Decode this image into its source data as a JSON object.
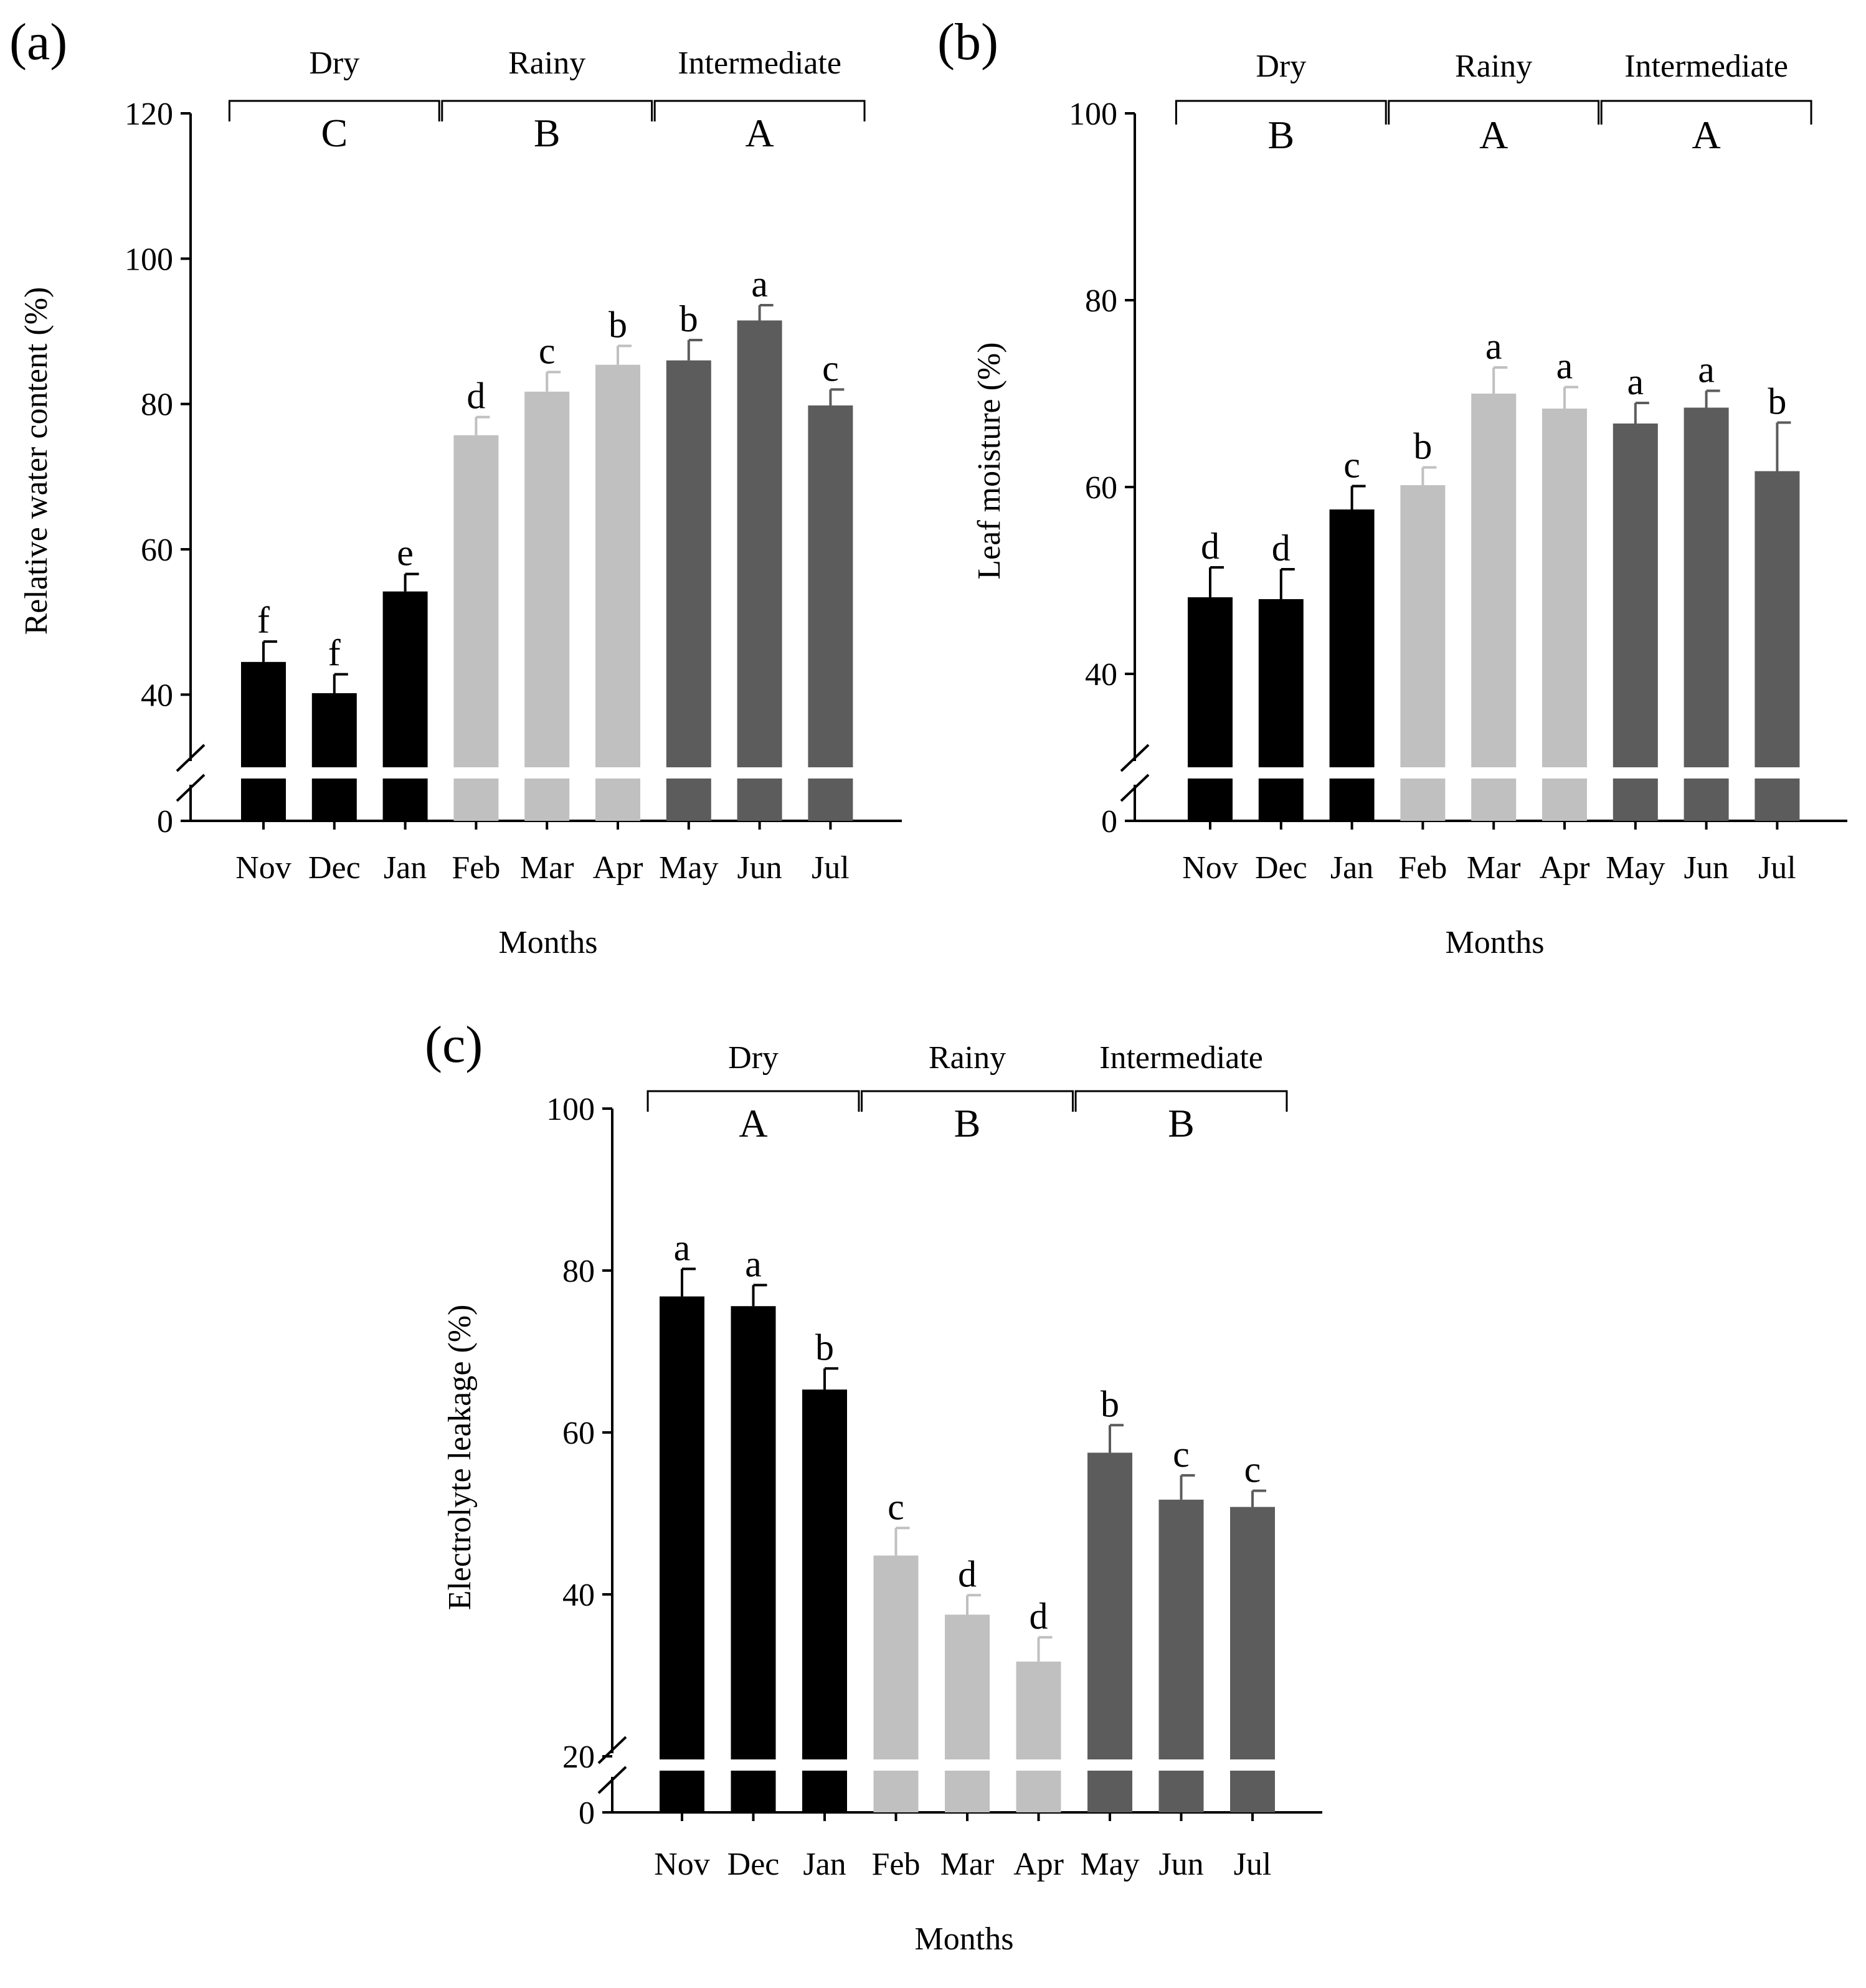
{
  "figure": {
    "x_title": "Months",
    "months": [
      "Nov",
      "Dec",
      "Jan",
      "Feb",
      "Mar",
      "Apr",
      "May",
      "Jun",
      "Jul"
    ],
    "season_colors": {
      "Dry": "#000000",
      "Rainy": "#c0c0c0",
      "Intermediate": "#5c5c5c"
    }
  },
  "chart_data": [
    {
      "panel": "(a)",
      "type": "bar",
      "ylabel": "Relative water content (%)",
      "xlabel": "Months",
      "categories": [
        "Nov",
        "Dec",
        "Jan",
        "Feb",
        "Mar",
        "Apr",
        "May",
        "Jun",
        "Jul"
      ],
      "values": [
        44.5,
        40.2,
        54.2,
        75.7,
        81.7,
        85.4,
        86.0,
        91.5,
        79.8
      ],
      "errors": [
        2.8,
        2.6,
        2.4,
        2.5,
        2.7,
        2.6,
        2.8,
        2.1,
        2.2
      ],
      "letters": [
        "f",
        "f",
        "e",
        "d",
        "c",
        "b",
        "b",
        "a",
        "c"
      ],
      "ylim": [
        30,
        120
      ],
      "y_ticks": [
        "0",
        "40",
        "60",
        "80",
        "100",
        "120"
      ],
      "axis_break": true,
      "seasons": [
        {
          "name": "Dry",
          "letter": "C",
          "months": [
            "Nov",
            "Dec",
            "Jan"
          ]
        },
        {
          "name": "Rainy",
          "letter": "B",
          "months": [
            "Feb",
            "Mar",
            "Apr"
          ]
        },
        {
          "name": "Intermediate",
          "letter": "A",
          "months": [
            "May",
            "Jun",
            "Jul"
          ]
        }
      ]
    },
    {
      "panel": "(b)",
      "type": "bar",
      "ylabel": "Leaf moisture (%)",
      "xlabel": "Months",
      "categories": [
        "Nov",
        "Dec",
        "Jan",
        "Feb",
        "Mar",
        "Apr",
        "May",
        "Jun",
        "Jul"
      ],
      "values": [
        48.2,
        48.0,
        57.6,
        60.2,
        70.0,
        68.4,
        66.8,
        68.5,
        61.7
      ],
      "errors": [
        3.2,
        3.2,
        2.5,
        1.9,
        2.8,
        2.3,
        2.2,
        1.8,
        5.2
      ],
      "letters": [
        "d",
        "d",
        "c",
        "b",
        "a",
        "a",
        "a",
        "a",
        "b"
      ],
      "ylim": [
        30,
        100
      ],
      "y_ticks": [
        "0",
        "40",
        "60",
        "80",
        "100"
      ],
      "axis_break": true,
      "seasons": [
        {
          "name": "Dry",
          "letter": "B",
          "months": [
            "Nov",
            "Dec",
            "Jan"
          ]
        },
        {
          "name": "Rainy",
          "letter": "A",
          "months": [
            "Feb",
            "Mar",
            "Apr"
          ]
        },
        {
          "name": "Intermediate",
          "letter": "A",
          "months": [
            "May",
            "Jun",
            "Jul"
          ]
        }
      ]
    },
    {
      "panel": "(c)",
      "type": "bar",
      "ylabel": "Electrolyte leakage (%)",
      "xlabel": "Months",
      "categories": [
        "Nov",
        "Dec",
        "Jan",
        "Feb",
        "Mar",
        "Apr",
        "May",
        "Jun",
        "Jul"
      ],
      "values": [
        76.8,
        75.6,
        65.3,
        44.8,
        37.5,
        31.7,
        57.5,
        51.7,
        50.8
      ],
      "errors": [
        3.4,
        2.6,
        2.6,
        3.4,
        2.4,
        3.0,
        3.4,
        3.0,
        2.0
      ],
      "letters": [
        "a",
        "a",
        "b",
        "c",
        "d",
        "d",
        "b",
        "c",
        "c"
      ],
      "ylim": [
        20,
        100
      ],
      "y_ticks": [
        "0",
        "20",
        "40",
        "60",
        "80",
        "100"
      ],
      "axis_break": true,
      "seasons": [
        {
          "name": "Dry",
          "letter": "A",
          "months": [
            "Nov",
            "Dec",
            "Jan"
          ]
        },
        {
          "name": "Rainy",
          "letter": "B",
          "months": [
            "Feb",
            "Mar",
            "Apr"
          ]
        },
        {
          "name": "Intermediate",
          "letter": "B",
          "months": [
            "May",
            "Jun",
            "Jul"
          ]
        }
      ]
    }
  ]
}
